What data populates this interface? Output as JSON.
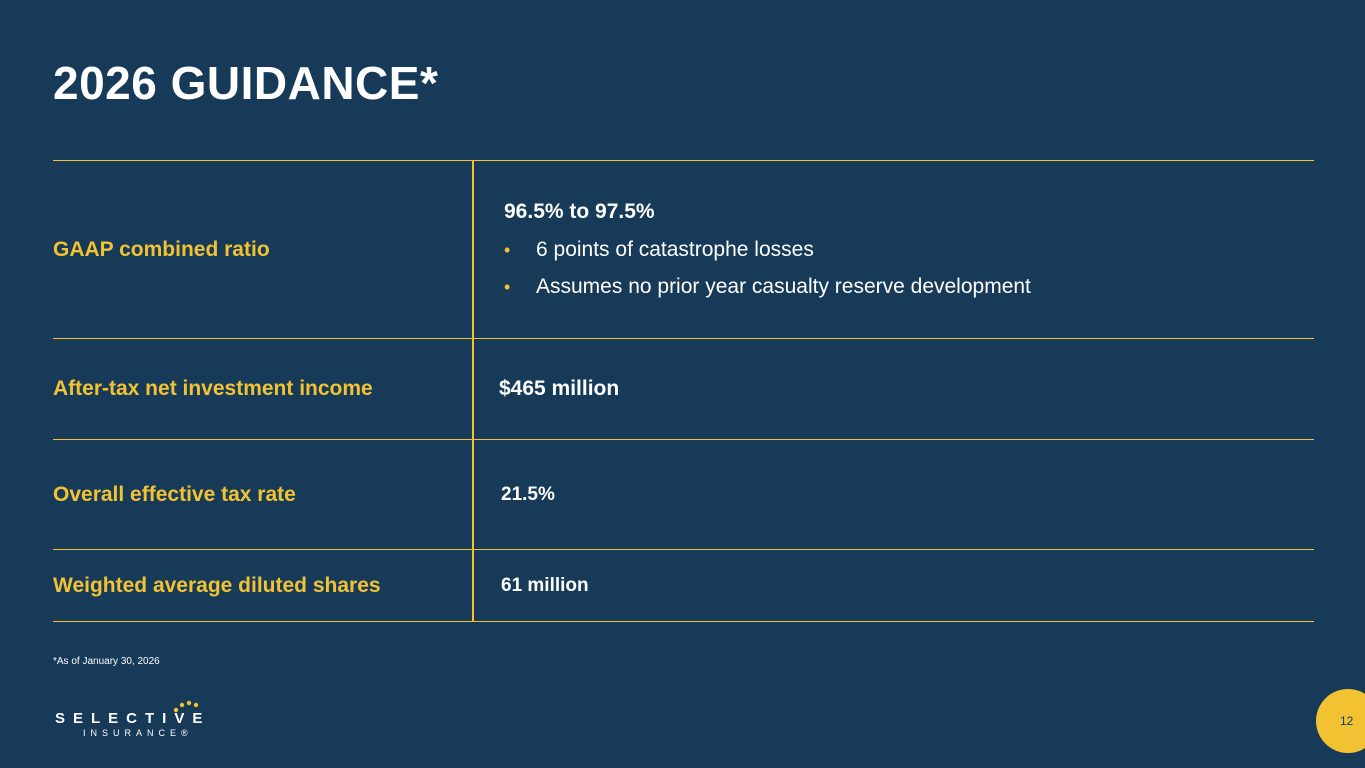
{
  "title": "2026 GUIDANCE*",
  "rows": [
    {
      "label": "GAAP combined ratio",
      "headline": "96.5% to 97.5%",
      "bullets": [
        "6 points of catastrophe losses",
        "Assumes no prior year casualty reserve development"
      ]
    },
    {
      "label": "After-tax net investment income",
      "value": "$465 million"
    },
    {
      "label": "Overall effective tax rate",
      "value": "21.5%"
    },
    {
      "label": "Weighted average diluted shares",
      "value": "61 million"
    }
  ],
  "footnote": "*As of January 30, 2026",
  "logo": {
    "word": "SELECTIVE",
    "sub": "INSURANCE®"
  },
  "page_number": "12",
  "colors": {
    "background": "#163a57",
    "accent": "#f2c233",
    "text": "#ffffff"
  }
}
